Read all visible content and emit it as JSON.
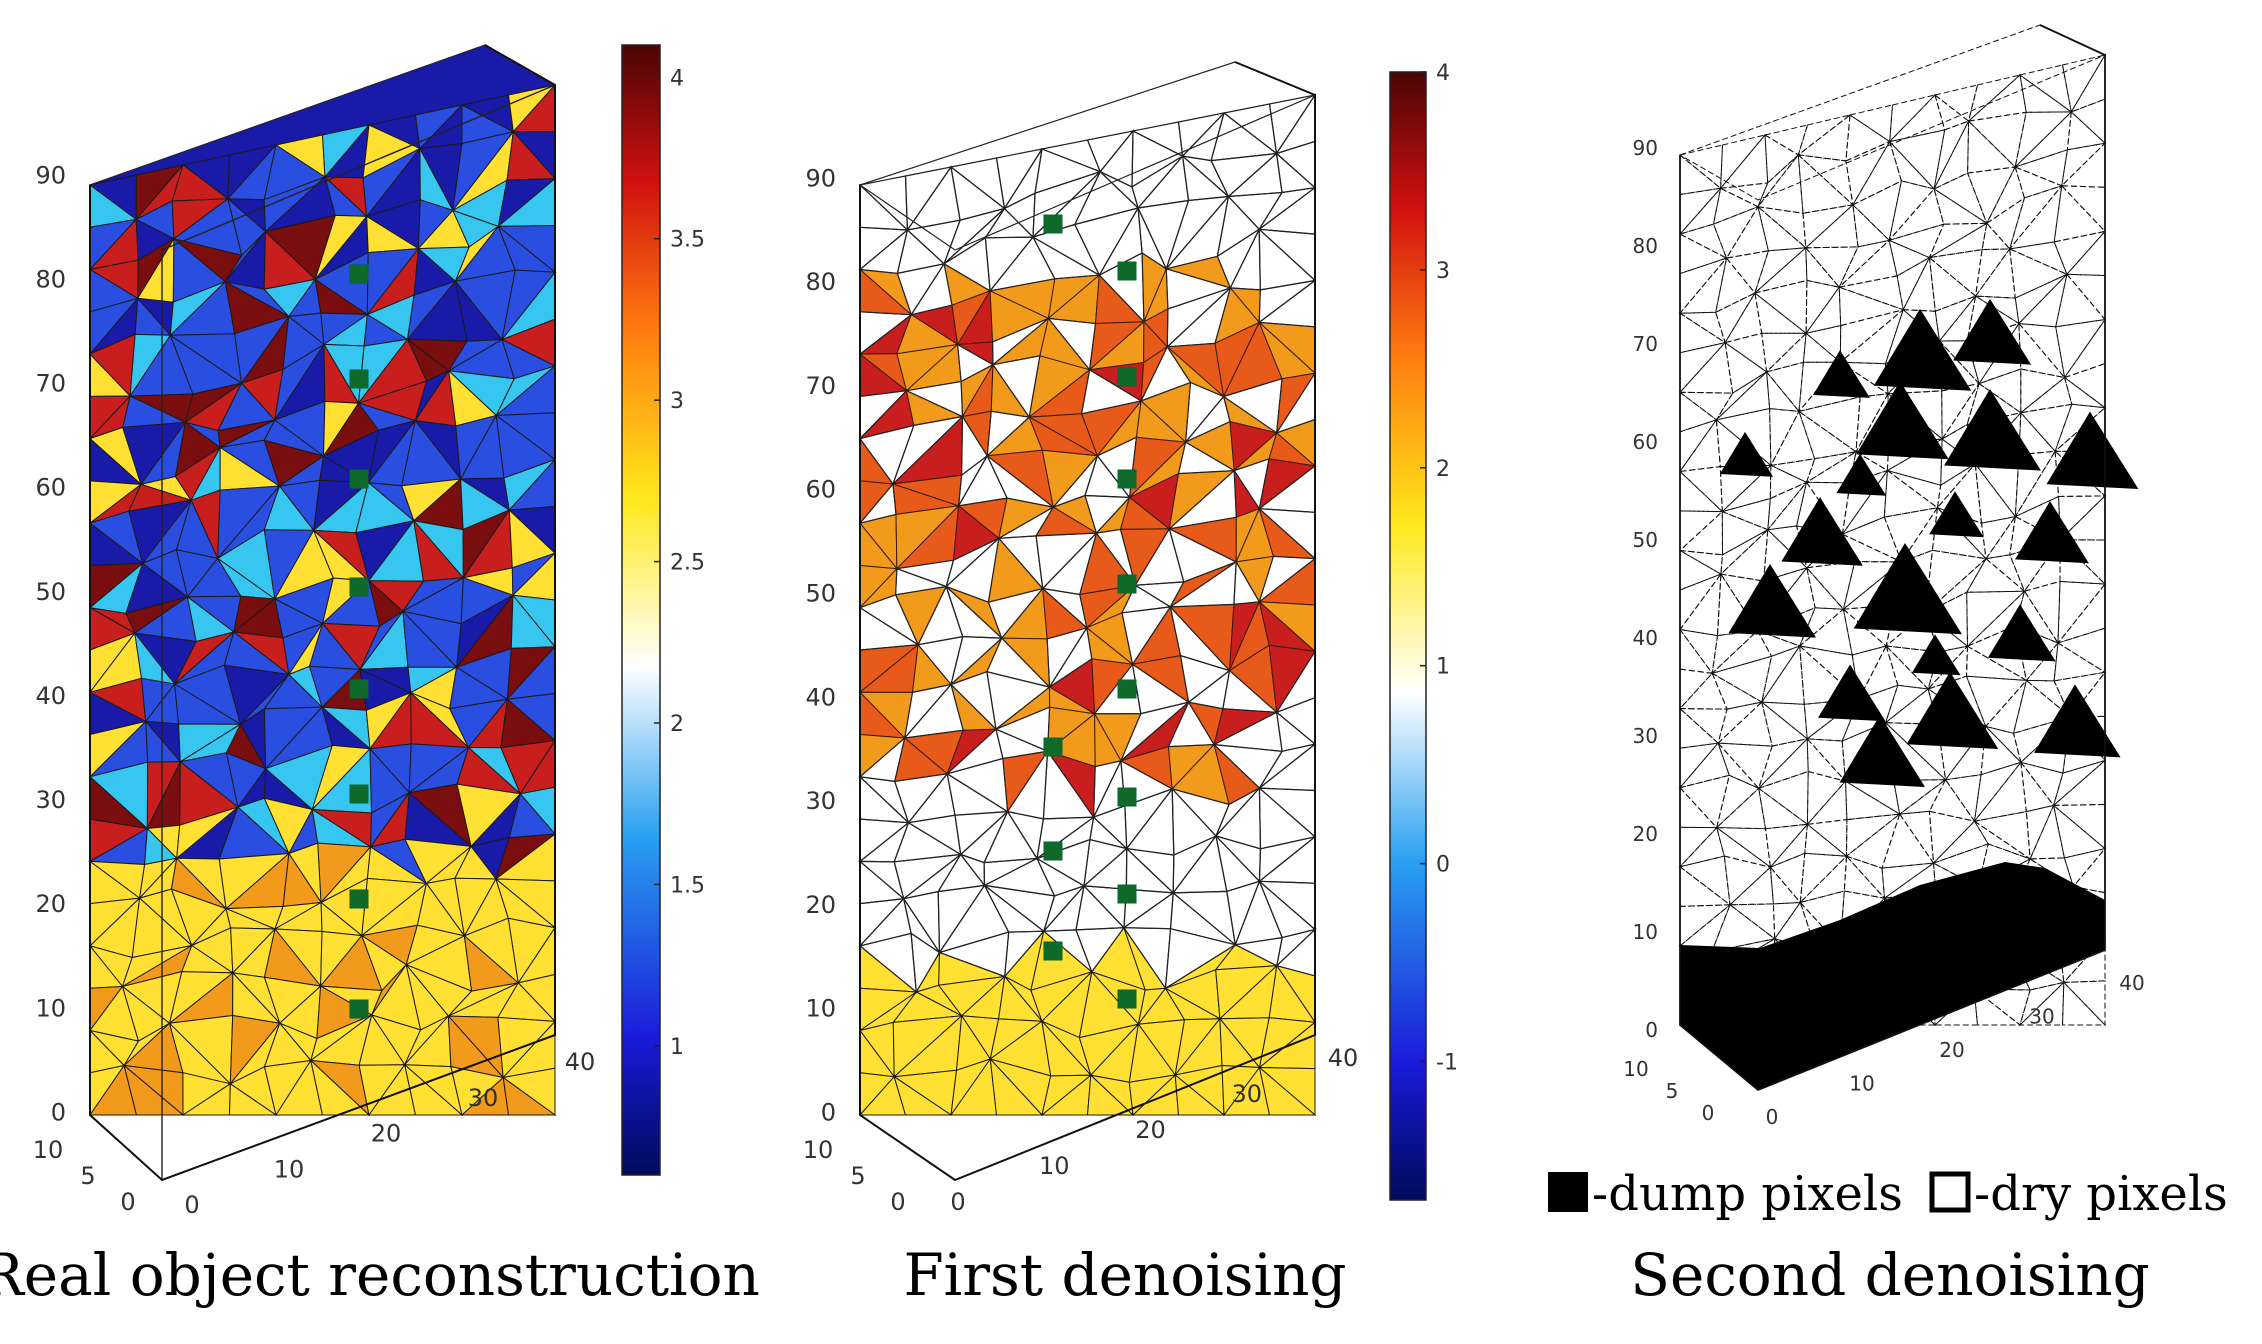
{
  "captions": {
    "left": "Real object reconstruction",
    "middle": "First denoising",
    "right": "Second denoising"
  },
  "legend": {
    "dump_label": "-dump pixels",
    "dry_label": "-dry pixels"
  },
  "axes": {
    "z_ticks": [
      "0",
      "10",
      "20",
      "30",
      "40",
      "50",
      "60",
      "70",
      "80",
      "90"
    ],
    "x_ticks": [
      "0",
      "10",
      "20",
      "30",
      "40"
    ],
    "y_ticks": [
      "0",
      "5",
      "10"
    ]
  },
  "colorbars": {
    "left": {
      "ticks": [
        "1",
        "1.5",
        "2",
        "2.5",
        "3",
        "3.5",
        "4"
      ],
      "min": 0.6,
      "max": 4.1
    },
    "middle": {
      "ticks": [
        "-1",
        "0",
        "1",
        "2",
        "3",
        "4"
      ],
      "min": -1.7,
      "max": 4.0
    }
  },
  "colors": {
    "deep_blue": "#1a1aa8",
    "blue": "#2a4fe0",
    "light_blue": "#37c6f0",
    "yellow": "#ffe033",
    "orange": "#f29a1c",
    "red": "#c81e1e",
    "dark_red": "#7a0d0d",
    "electrode_green": "#0f6a2a"
  }
}
